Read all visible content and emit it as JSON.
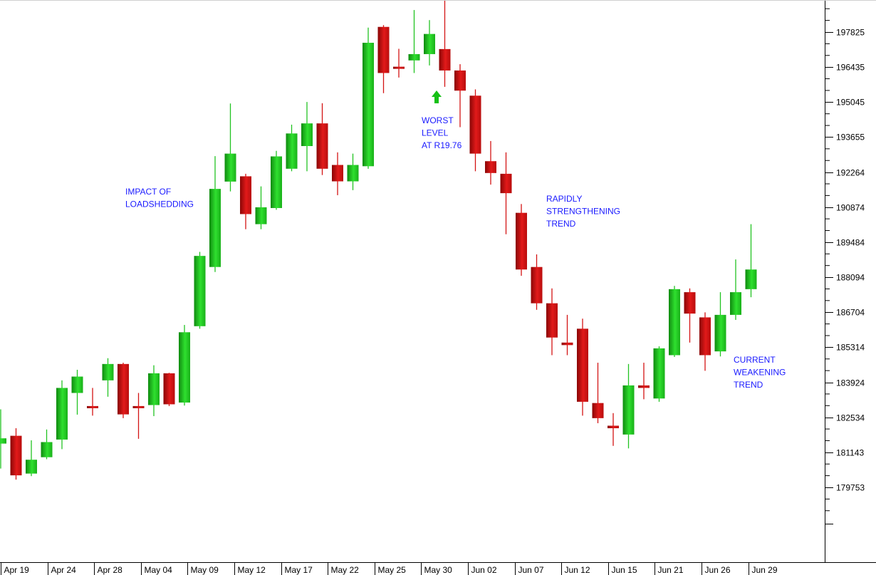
{
  "chart_data": {
    "type": "candlestick",
    "title_partial": ", ..., ...y (..)",
    "y_ticks": [
      179753,
      181143,
      182534,
      183924,
      185314,
      186704,
      188094,
      189484,
      190874,
      192264,
      193655,
      195045,
      196435,
      197825
    ],
    "ylim": [
      177800,
      199350
    ],
    "x_tick_labels": [
      "Apr 19",
      "Apr 24",
      "Apr 28",
      "May 04",
      "May 09",
      "May 12",
      "May 17",
      "May 22",
      "May 25",
      "May 30",
      "Jun 02",
      "Jun 07",
      "Jun 12",
      "Jun 15",
      "Jun 21",
      "Jun 26",
      "Jun 29"
    ],
    "candles": [
      {
        "o": 181490,
        "h": 182850,
        "l": 180500,
        "c": 181700
      },
      {
        "o": 181800,
        "h": 182100,
        "l": 180060,
        "c": 180230
      },
      {
        "o": 180300,
        "h": 181620,
        "l": 180200,
        "c": 180850
      },
      {
        "o": 180950,
        "h": 182050,
        "l": 180870,
        "c": 181550
      },
      {
        "o": 181650,
        "h": 184000,
        "l": 181270,
        "c": 183700
      },
      {
        "o": 183500,
        "h": 184420,
        "l": 182640,
        "c": 184150
      },
      {
        "o": 182980,
        "h": 183700,
        "l": 182600,
        "c": 182900
      },
      {
        "o": 184000,
        "h": 184880,
        "l": 183350,
        "c": 184650
      },
      {
        "o": 184650,
        "h": 184700,
        "l": 182500,
        "c": 182650
      },
      {
        "o": 182980,
        "h": 183500,
        "l": 181680,
        "c": 182900
      },
      {
        "o": 183020,
        "h": 184600,
        "l": 182580,
        "c": 184280
      },
      {
        "o": 184280,
        "h": 184300,
        "l": 182980,
        "c": 183050
      },
      {
        "o": 183120,
        "h": 186200,
        "l": 183000,
        "c": 185910
      },
      {
        "o": 186150,
        "h": 189100,
        "l": 186050,
        "c": 188940
      },
      {
        "o": 188500,
        "h": 192900,
        "l": 188300,
        "c": 191600
      },
      {
        "o": 191890,
        "h": 194990,
        "l": 191500,
        "c": 193000
      },
      {
        "o": 192100,
        "h": 192200,
        "l": 190000,
        "c": 190600
      },
      {
        "o": 190200,
        "h": 191700,
        "l": 190000,
        "c": 190870
      },
      {
        "o": 190840,
        "h": 193110,
        "l": 190770,
        "c": 192890
      },
      {
        "o": 192400,
        "h": 194150,
        "l": 192300,
        "c": 193800
      },
      {
        "o": 193300,
        "h": 195050,
        "l": 192300,
        "c": 194200
      },
      {
        "o": 194200,
        "h": 195000,
        "l": 192150,
        "c": 192400
      },
      {
        "o": 192550,
        "h": 193050,
        "l": 191350,
        "c": 191900
      },
      {
        "o": 191900,
        "h": 193000,
        "l": 191550,
        "c": 192550
      },
      {
        "o": 192500,
        "h": 198000,
        "l": 192400,
        "c": 197400
      },
      {
        "o": 198030,
        "h": 198100,
        "l": 195400,
        "c": 196200
      },
      {
        "o": 196450,
        "h": 197160,
        "l": 196020,
        "c": 196400
      },
      {
        "o": 196700,
        "h": 198700,
        "l": 196200,
        "c": 196950
      },
      {
        "o": 196950,
        "h": 198300,
        "l": 196500,
        "c": 197750
      },
      {
        "o": 197150,
        "h": 199300,
        "l": 195650,
        "c": 196300
      },
      {
        "o": 196300,
        "h": 196550,
        "l": 194050,
        "c": 195500
      },
      {
        "o": 195300,
        "h": 195550,
        "l": 192300,
        "c": 193000
      },
      {
        "o": 192700,
        "h": 193500,
        "l": 191770,
        "c": 192230
      },
      {
        "o": 192200,
        "h": 193050,
        "l": 189800,
        "c": 191430
      },
      {
        "o": 190650,
        "h": 191000,
        "l": 188150,
        "c": 188400
      },
      {
        "o": 188500,
        "h": 189000,
        "l": 186800,
        "c": 187060
      },
      {
        "o": 187060,
        "h": 187650,
        "l": 185000,
        "c": 185700
      },
      {
        "o": 185500,
        "h": 186600,
        "l": 185000,
        "c": 185400
      },
      {
        "o": 186050,
        "h": 186450,
        "l": 182600,
        "c": 183150
      },
      {
        "o": 183100,
        "h": 184700,
        "l": 182300,
        "c": 182500
      },
      {
        "o": 182200,
        "h": 182700,
        "l": 181400,
        "c": 182100
      },
      {
        "o": 181850,
        "h": 184650,
        "l": 181300,
        "c": 183800
      },
      {
        "o": 183800,
        "h": 184700,
        "l": 183250,
        "c": 183700
      },
      {
        "o": 183280,
        "h": 185350,
        "l": 183150,
        "c": 185270
      },
      {
        "o": 185000,
        "h": 187750,
        "l": 184930,
        "c": 187620
      },
      {
        "o": 187500,
        "h": 187650,
        "l": 185500,
        "c": 186650
      },
      {
        "o": 186500,
        "h": 186700,
        "l": 184380,
        "c": 185000
      },
      {
        "o": 185150,
        "h": 187500,
        "l": 184950,
        "c": 186600
      },
      {
        "o": 186600,
        "h": 188800,
        "l": 186400,
        "c": 187500
      },
      {
        "o": 187620,
        "h": 190200,
        "l": 187300,
        "c": 188400
      }
    ],
    "annotations": [
      {
        "lines": [
          "IMPACT OF",
          "LOADSHEDDING"
        ]
      },
      {
        "lines": [
          "WORST",
          "LEVEL",
          "AT R19.76"
        ]
      },
      {
        "lines": [
          "RAPIDLY",
          "STRENGTHENING",
          "TREND"
        ]
      },
      {
        "lines": [
          "CURRENT",
          "WEAKENING",
          "TREND"
        ]
      }
    ],
    "colors": {
      "up": "#22c322",
      "down": "#d41414",
      "annotation": "#1a1aff",
      "arrow": "#16c016"
    }
  }
}
